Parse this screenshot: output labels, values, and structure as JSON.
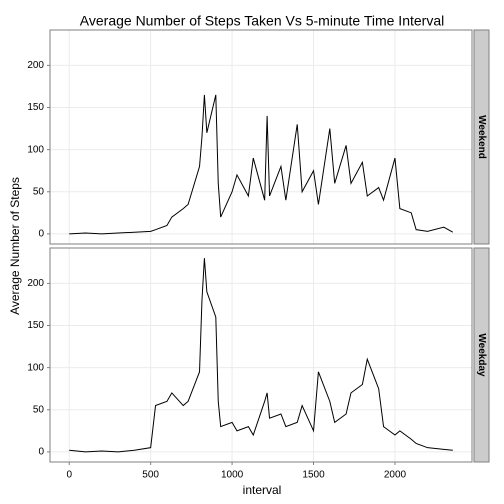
{
  "chart_data": {
    "type": "line",
    "title": "Average Number of Steps Taken Vs 5-minute Time Interval",
    "xlabel": "interval",
    "ylabel": "Average Number of Steps",
    "x": [
      0,
      100,
      200,
      300,
      400,
      500,
      530,
      600,
      630,
      700,
      730,
      800,
      815,
      830,
      845,
      900,
      915,
      930,
      1000,
      1030,
      1100,
      1130,
      1200,
      1215,
      1230,
      1300,
      1330,
      1400,
      1430,
      1500,
      1530,
      1600,
      1630,
      1700,
      1730,
      1800,
      1830,
      1900,
      1930,
      2000,
      2030,
      2100,
      2130,
      2200,
      2300,
      2355
    ],
    "series": [
      {
        "name": "Weekend",
        "color": "#000000",
        "values": [
          0,
          1,
          0,
          1,
          2,
          3,
          5,
          10,
          20,
          30,
          35,
          80,
          115,
          165,
          120,
          165,
          60,
          20,
          50,
          70,
          45,
          90,
          40,
          140,
          45,
          80,
          40,
          130,
          50,
          75,
          35,
          125,
          60,
          105,
          60,
          85,
          45,
          55,
          40,
          90,
          30,
          25,
          5,
          3,
          8,
          2
        ]
      },
      {
        "name": "Weekday",
        "color": "#000000",
        "values": [
          2,
          0,
          1,
          0,
          2,
          5,
          55,
          60,
          70,
          55,
          60,
          95,
          180,
          230,
          190,
          160,
          60,
          30,
          35,
          25,
          30,
          20,
          60,
          70,
          40,
          45,
          30,
          35,
          55,
          25,
          95,
          60,
          35,
          45,
          70,
          80,
          110,
          75,
          30,
          20,
          25,
          15,
          10,
          5,
          3,
          2
        ]
      }
    ],
    "xlim": [
      -118,
      2473
    ],
    "xticks": [
      0,
      500,
      1000,
      1500,
      2000
    ],
    "ylim": [
      -12,
      242
    ],
    "yticks": [
      0,
      50,
      100,
      150,
      200
    ],
    "grid": true
  }
}
